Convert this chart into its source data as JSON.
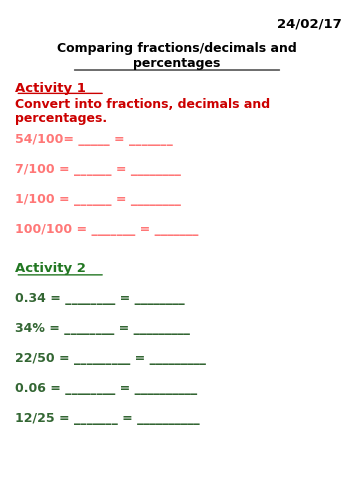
{
  "date": "24/02/17",
  "title_line1": "Comparing fractions/decimals and",
  "title_line2": "percentages",
  "activity1_header": "Activity 1",
  "activity1_subheader_line1": "Convert into fractions, decimals and",
  "activity1_subheader_line2": "percentages.",
  "activity2_header": "Activity 2",
  "bg_color": "#ffffff",
  "date_color": "#000000",
  "title_color": "#000000",
  "activity1_header_color": "#cc0000",
  "activity1_text_color": "#cc0000",
  "activity1_item_color": "#ff7777",
  "activity2_header_color": "#227722",
  "activity2_item_color": "#336633",
  "act1_items": [
    [
      "54/100= ",
      "_____",
      " = ",
      "_______"
    ],
    [
      "7/100 = ",
      "______",
      " = ",
      "________"
    ],
    [
      "1/100 = ",
      "______",
      " = ",
      "________"
    ],
    [
      "100/100 = ",
      "_______",
      " = ",
      "_______"
    ]
  ],
  "act2_items": [
    [
      "0.34 = ",
      "________",
      " = ",
      "________"
    ],
    [
      "34% = ",
      "________",
      " = ",
      "_________"
    ],
    [
      "22/50 = ",
      "_________",
      " = ",
      "_________"
    ],
    [
      "0.06 = ",
      "________",
      " = ",
      "__________"
    ],
    [
      "12/25 = ",
      "_______",
      " = ",
      "__________"
    ]
  ]
}
